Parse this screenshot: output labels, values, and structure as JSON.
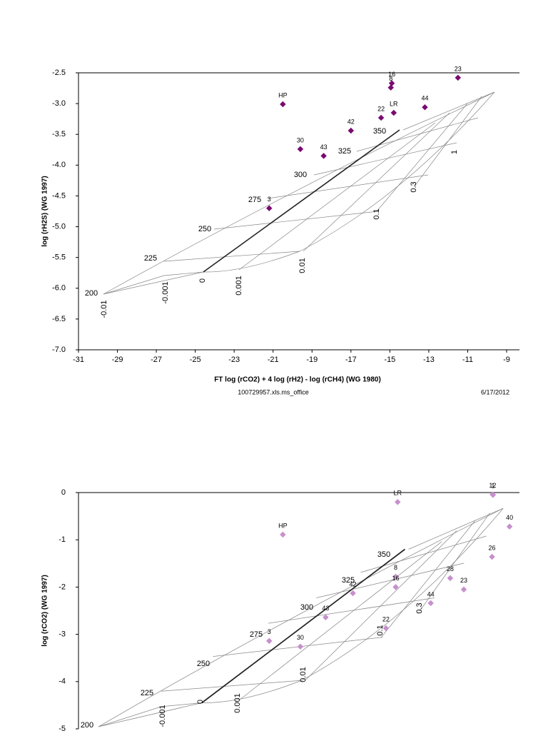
{
  "chart_data": [
    {
      "type": "scatter",
      "y_label": "log (rH2S)  (WG 1997)",
      "x_label": "FT  log (rCO2) + 4 log (rH2) - log (rCH4)  (WG 1980)",
      "footer_left": "100729957.xls.ms_office",
      "footer_right": "6/17/2012",
      "xlim": [
        -31,
        -8.34
      ],
      "xticks": [
        -31,
        -29,
        -27,
        -25,
        -23,
        -21,
        -19,
        -17,
        -15,
        -13,
        -11,
        -9
      ],
      "ylim": [
        -7,
        -2.5
      ],
      "yticks": [
        -2.5,
        {
          "value": -3,
          "label": "-3.0"
        },
        -3.5,
        {
          "value": -4,
          "label": "-4.0"
        },
        -4.5,
        {
          "value": -5,
          "label": "-5.0"
        },
        -5.5,
        {
          "value": -6,
          "label": "-6.0"
        },
        -6.5,
        {
          "value": -7,
          "label": "-7.0"
        }
      ],
      "grid_labels": [
        "200",
        "225",
        "250",
        "275",
        "300",
        "325",
        "350",
        "-0.01",
        "-0.001",
        "0",
        "0.001",
        "0.01",
        "0.1",
        "0.3",
        "1"
      ],
      "series": [
        {
          "color": "#7a0a70",
          "point_labels": [
            "HP",
            "30",
            "43",
            "42",
            "3",
            "22",
            "LR",
            "16",
            "8",
            "44",
            "23"
          ],
          "x": [
            -20.5,
            -19.6,
            -18.4,
            -17.0,
            -21.2,
            -15.45,
            -14.8,
            -14.9,
            -14.95,
            -13.2,
            -11.5
          ],
          "values": [
            -3.01,
            -3.74,
            -3.85,
            -3.44,
            -4.7,
            -3.23,
            -3.15,
            -2.67,
            -2.74,
            -3.06,
            -2.58
          ]
        }
      ]
    },
    {
      "type": "scatter",
      "y_label": "log (rCO2)  (WG 1997)",
      "xlim": [
        -31,
        -8.34
      ],
      "ylim": [
        -5,
        0
      ],
      "yticks": [
        0,
        -1,
        -2,
        -3,
        -4,
        -5
      ],
      "grid_labels": [
        "200",
        "225",
        "250",
        "275",
        "300",
        "325",
        "350",
        "-0.001",
        "0",
        "0.001",
        "0.01",
        "0.1",
        "0.3"
      ],
      "series": [
        {
          "color": "#c78fcc",
          "point_labels": [
            "HP",
            "LR",
            "1",
            "12",
            "40",
            "26",
            "28",
            "23",
            "44",
            "8",
            "16",
            "42",
            "43",
            "22",
            "3",
            "30"
          ],
          "x": [
            -20.5,
            -14.6,
            -9.7,
            -9.72,
            -8.85,
            -9.75,
            -11.9,
            -11.2,
            -12.9,
            -14.7,
            -14.7,
            -16.9,
            -18.3,
            -15.2,
            -21.2,
            -19.6
          ],
          "values": [
            -0.89,
            -0.2,
            -0.05,
            -0.04,
            -0.72,
            -1.36,
            -1.81,
            -2.05,
            -2.34,
            -1.78,
            -2.0,
            -2.13,
            -2.64,
            -2.87,
            -3.14,
            -3.26
          ]
        }
      ]
    }
  ]
}
